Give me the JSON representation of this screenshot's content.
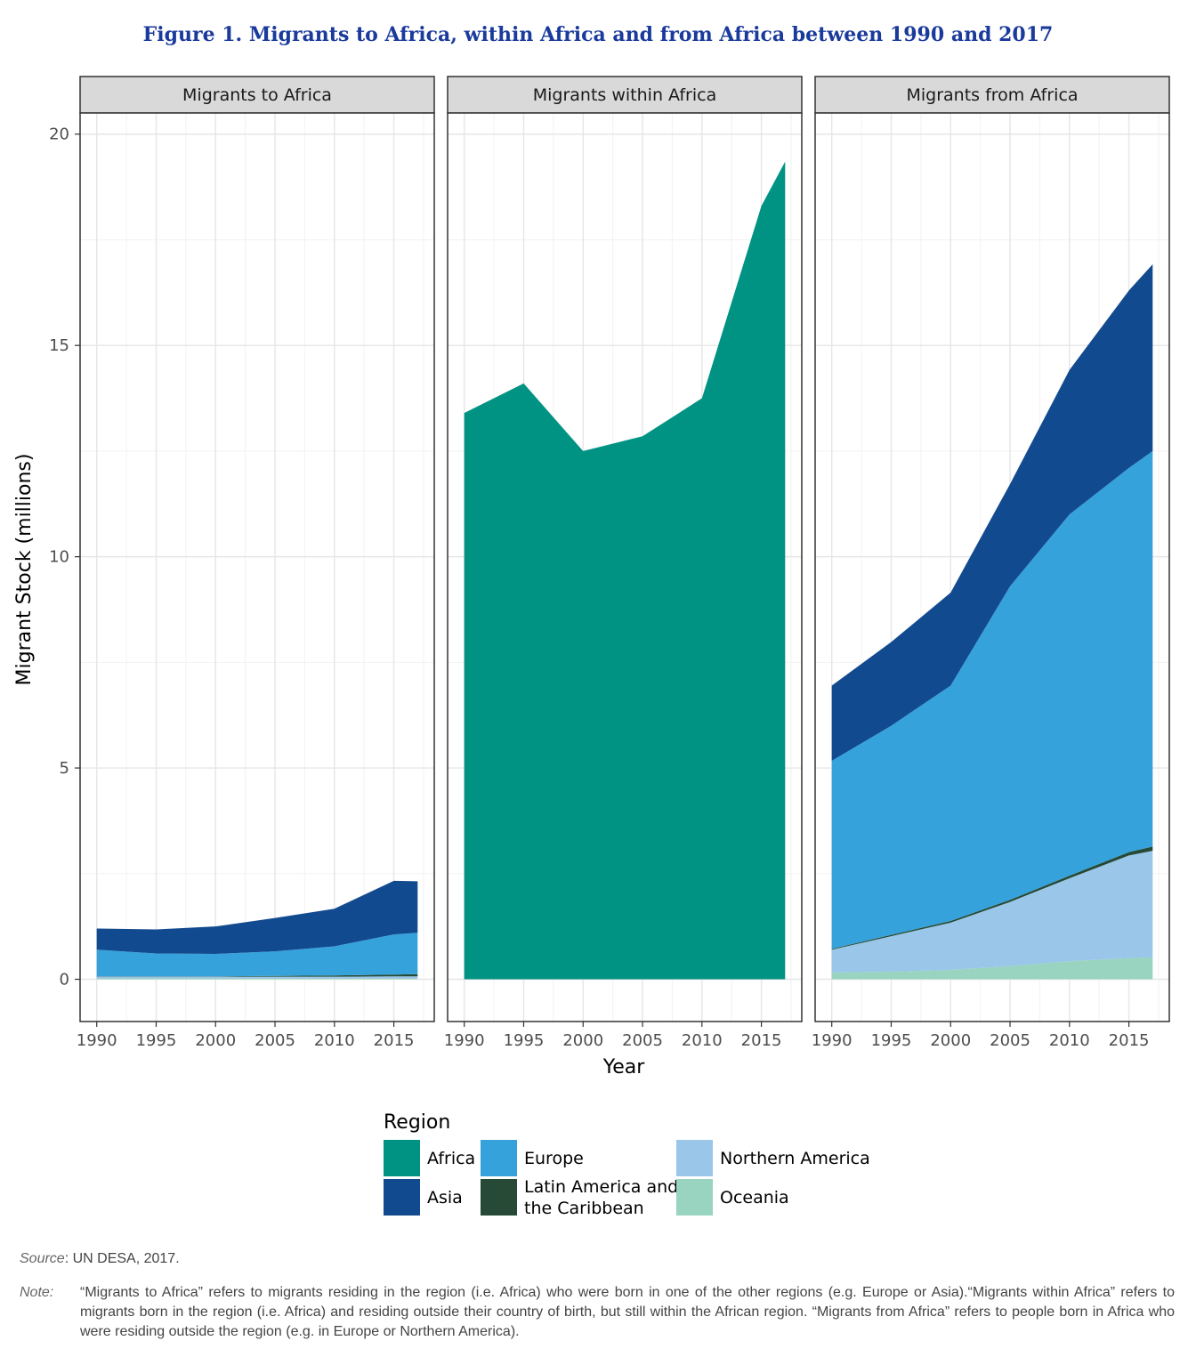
{
  "title": "Figure 1. Migrants to Africa, within Africa and from Africa between 1990 and 2017",
  "source_label": "Source",
  "source_text": ": UN DESA, 2017.",
  "note_label": "Note:",
  "note_text": "“Migrants to Africa” refers to migrants residing in the region (i.e. Africa) who were born in one of the other regions (e.g. Europe or Asia).“Migrants within Africa” refers to migrants born in the region (i.e. Africa) and residing outside their country of birth, but still within the African region. “Migrants from Africa” refers to people born in Africa who were residing outside the region (e.g. in Europe or Northern America).",
  "colors": {
    "Africa": "#009383",
    "Asia": "#124a8f",
    "Europe": "#36a2db",
    "Latin America and the Caribbean": "#264a35",
    "Northern America": "#99c6e9",
    "Oceania": "#98d4bf"
  },
  "chart_data": {
    "type": "area",
    "stacked": true,
    "xlabel": "Year",
    "ylabel": "Migrant Stock (millions)",
    "x": [
      1990,
      1995,
      2000,
      2005,
      2010,
      2015,
      2017
    ],
    "xticks": [
      1990,
      1995,
      2000,
      2005,
      2010,
      2015
    ],
    "xlim": [
      1988.6,
      2018.4
    ],
    "ylim": [
      -1.0,
      20.5
    ],
    "yticks": [
      0,
      5,
      10,
      15,
      20
    ],
    "grid": true,
    "legend": {
      "title": "Region",
      "position": "bottom",
      "entries": [
        {
          "label": "Africa",
          "key": "Africa"
        },
        {
          "label": "Asia",
          "key": "Asia"
        },
        {
          "label": "Europe",
          "key": "Europe"
        },
        {
          "label": "Latin America and the Caribbean",
          "lines": [
            "Latin America and",
            "the Caribbean"
          ],
          "key": "Latin America and the Caribbean"
        },
        {
          "label": "Northern America",
          "key": "Northern America"
        },
        {
          "label": "Oceania",
          "key": "Oceania"
        }
      ]
    },
    "panels": [
      {
        "title": "Migrants to Africa",
        "series": [
          {
            "name": "Oceania",
            "values": [
              0.02,
              0.02,
              0.02,
              0.02,
              0.02,
              0.02,
              0.02
            ]
          },
          {
            "name": "Northern America",
            "values": [
              0.04,
              0.04,
              0.04,
              0.04,
              0.04,
              0.05,
              0.05
            ]
          },
          {
            "name": "Latin America and the Caribbean",
            "values": [
              0.01,
              0.01,
              0.01,
              0.02,
              0.03,
              0.04,
              0.05
            ]
          },
          {
            "name": "Europe",
            "values": [
              0.63,
              0.54,
              0.53,
              0.58,
              0.69,
              0.95,
              0.98
            ]
          },
          {
            "name": "Asia",
            "values": [
              0.5,
              0.57,
              0.65,
              0.79,
              0.89,
              1.27,
              1.22
            ]
          }
        ]
      },
      {
        "title": "Migrants within Africa",
        "series": [
          {
            "name": "Africa",
            "values": [
              13.4,
              14.1,
              12.5,
              12.85,
              13.75,
              18.3,
              19.35
            ]
          }
        ]
      },
      {
        "title": "Migrants from Africa",
        "series": [
          {
            "name": "Oceania",
            "values": [
              0.16,
              0.18,
              0.22,
              0.31,
              0.43,
              0.5,
              0.52
            ]
          },
          {
            "name": "Northern America",
            "values": [
              0.54,
              0.84,
              1.12,
              1.52,
              1.96,
              2.43,
              2.52
            ]
          },
          {
            "name": "Latin America and the Caribbean",
            "values": [
              0.02,
              0.03,
              0.04,
              0.05,
              0.06,
              0.08,
              0.1
            ]
          },
          {
            "name": "Europe",
            "values": [
              4.45,
              4.95,
              5.57,
              7.42,
              8.55,
              9.09,
              9.36
            ]
          },
          {
            "name": "Asia",
            "values": [
              1.78,
              1.98,
              2.2,
              2.42,
              3.42,
              4.2,
              4.42
            ]
          }
        ]
      }
    ]
  }
}
